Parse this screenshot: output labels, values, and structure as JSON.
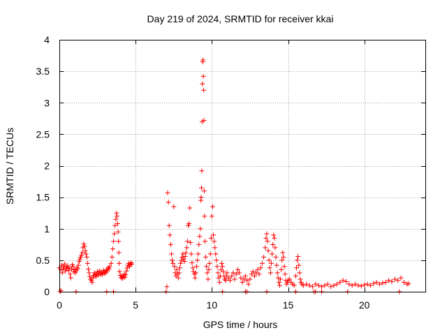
{
  "chart_data": {
    "type": "scatter",
    "title": "Day 219 of 2024, SRMTID for receiver kkai",
    "xlabel": "GPS time / hours",
    "ylabel": "SRMTID / TECUs",
    "xlim": [
      0,
      24
    ],
    "ylim": [
      0,
      4
    ],
    "xticks": [
      0,
      5,
      10,
      15,
      20
    ],
    "yticks": [
      0,
      0.5,
      1,
      1.5,
      2,
      2.5,
      3,
      3.5,
      4
    ],
    "xtick_labels": [
      "0",
      "5",
      "10",
      "15",
      "20"
    ],
    "ytick_labels": [
      "0",
      "0.5",
      "1",
      "1.5",
      "2",
      "2.5",
      "3",
      "3.5",
      "4"
    ],
    "grid": true,
    "marker": "+",
    "color": "#ff0000",
    "series": [
      {
        "name": "kkai",
        "points": [
          [
            0.0,
            0.38
          ],
          [
            0.1,
            0.35
          ],
          [
            0.15,
            0.42
          ],
          [
            0.2,
            0.3
          ],
          [
            0.25,
            0.4
          ],
          [
            0.3,
            0.36
          ],
          [
            0.35,
            0.44
          ],
          [
            0.4,
            0.33
          ],
          [
            0.45,
            0.39
          ],
          [
            0.5,
            0.37
          ],
          [
            0.55,
            0.41
          ],
          [
            0.6,
            0.34
          ],
          [
            0.65,
            0.38
          ],
          [
            0.7,
            0.28
          ],
          [
            0.75,
            0.22
          ],
          [
            0.8,
            0.36
          ],
          [
            0.85,
            0.43
          ],
          [
            0.9,
            0.4
          ],
          [
            0.95,
            0.32
          ],
          [
            1.0,
            0.35
          ],
          [
            1.05,
            0.3
          ],
          [
            1.1,
            0.33
          ],
          [
            1.15,
            0.38
          ],
          [
            1.2,
            0.36
          ],
          [
            1.25,
            0.42
          ],
          [
            1.3,
            0.48
          ],
          [
            1.35,
            0.52
          ],
          [
            1.4,
            0.55
          ],
          [
            1.45,
            0.58
          ],
          [
            1.5,
            0.62
          ],
          [
            1.55,
            0.7
          ],
          [
            1.6,
            0.76
          ],
          [
            1.65,
            0.72
          ],
          [
            1.7,
            0.65
          ],
          [
            1.75,
            0.6
          ],
          [
            1.8,
            0.55
          ],
          [
            1.85,
            0.45
          ],
          [
            1.9,
            0.36
          ],
          [
            1.95,
            0.3
          ],
          [
            2.0,
            0.24
          ],
          [
            2.05,
            0.2
          ],
          [
            2.1,
            0.18
          ],
          [
            2.15,
            0.15
          ],
          [
            2.2,
            0.22
          ],
          [
            2.25,
            0.26
          ],
          [
            2.3,
            0.3
          ],
          [
            2.35,
            0.27
          ],
          [
            2.4,
            0.24
          ],
          [
            2.45,
            0.28
          ],
          [
            2.5,
            0.32
          ],
          [
            2.55,
            0.26
          ],
          [
            2.6,
            0.3
          ],
          [
            2.65,
            0.33
          ],
          [
            2.7,
            0.28
          ],
          [
            2.75,
            0.31
          ],
          [
            2.8,
            0.27
          ],
          [
            2.85,
            0.3
          ],
          [
            2.9,
            0.34
          ],
          [
            2.95,
            0.29
          ],
          [
            3.0,
            0.32
          ],
          [
            3.05,
            0.3
          ],
          [
            3.1,
            0.35
          ],
          [
            3.15,
            0.33
          ],
          [
            3.2,
            0.38
          ],
          [
            3.25,
            0.36
          ],
          [
            3.3,
            0.4
          ],
          [
            3.4,
            0.45
          ],
          [
            3.45,
            0.55
          ],
          [
            3.5,
            0.68
          ],
          [
            3.55,
            0.8
          ],
          [
            3.6,
            0.92
          ],
          [
            3.65,
            1.05
          ],
          [
            3.7,
            1.15
          ],
          [
            3.75,
            1.25
          ],
          [
            3.78,
            1.2
          ],
          [
            3.82,
            1.08
          ],
          [
            3.85,
            0.95
          ],
          [
            3.88,
            0.8
          ],
          [
            3.9,
            0.62
          ],
          [
            3.92,
            0.45
          ],
          [
            3.95,
            0.32
          ],
          [
            4.0,
            0.26
          ],
          [
            4.05,
            0.22
          ],
          [
            4.1,
            0.25
          ],
          [
            4.15,
            0.21
          ],
          [
            4.2,
            0.24
          ],
          [
            4.25,
            0.28
          ],
          [
            4.3,
            0.23
          ],
          [
            4.35,
            0.27
          ],
          [
            4.4,
            0.33
          ],
          [
            4.45,
            0.38
          ],
          [
            4.5,
            0.42
          ],
          [
            4.55,
            0.45
          ],
          [
            4.6,
            0.4
          ],
          [
            4.65,
            0.43
          ],
          [
            4.7,
            0.46
          ],
          [
            4.75,
            0.44
          ],
          [
            0.05,
            0.0
          ],
          [
            0.1,
            0.02
          ],
          [
            1.1,
            0.0
          ],
          [
            3.1,
            0.0
          ],
          [
            3.55,
            0.0
          ],
          [
            7.0,
            0.0
          ],
          [
            7.05,
            0.08
          ],
          [
            7.1,
            1.57
          ],
          [
            7.15,
            1.42
          ],
          [
            7.2,
            1.05
          ],
          [
            7.25,
            0.9
          ],
          [
            7.3,
            0.75
          ],
          [
            7.35,
            0.6
          ],
          [
            7.4,
            0.5
          ],
          [
            7.45,
            0.45
          ],
          [
            7.5,
            1.35
          ],
          [
            7.55,
            0.4
          ],
          [
            7.6,
            0.3
          ],
          [
            7.65,
            0.25
          ],
          [
            7.7,
            0.35
          ],
          [
            7.75,
            0.28
          ],
          [
            7.8,
            0.22
          ],
          [
            7.85,
            0.3
          ],
          [
            7.9,
            0.38
          ],
          [
            7.95,
            0.45
          ],
          [
            8.0,
            0.5
          ],
          [
            8.05,
            0.55
          ],
          [
            8.1,
            0.6
          ],
          [
            8.15,
            0.52
          ],
          [
            8.2,
            0.48
          ],
          [
            8.25,
            0.56
          ],
          [
            8.3,
            0.62
          ],
          [
            8.35,
            0.7
          ],
          [
            8.4,
            0.8
          ],
          [
            8.45,
            1.05
          ],
          [
            8.5,
            1.08
          ],
          [
            8.55,
            1.33
          ],
          [
            8.6,
            0.78
          ],
          [
            8.65,
            0.6
          ],
          [
            8.7,
            0.46
          ],
          [
            8.75,
            0.38
          ],
          [
            8.8,
            0.32
          ],
          [
            8.85,
            0.28
          ],
          [
            8.9,
            0.22
          ],
          [
            8.95,
            0.3
          ],
          [
            9.0,
            0.4
          ],
          [
            9.05,
            0.5
          ],
          [
            9.1,
            0.6
          ],
          [
            9.15,
            0.75
          ],
          [
            9.2,
            0.88
          ],
          [
            9.25,
            1.0
          ],
          [
            9.28,
            1.45
          ],
          [
            9.3,
            1.5
          ],
          [
            9.32,
            1.65
          ],
          [
            9.34,
            1.92
          ],
          [
            9.36,
            2.7
          ],
          [
            9.38,
            3.3
          ],
          [
            9.4,
            3.65
          ],
          [
            9.42,
            3.68
          ],
          [
            9.44,
            3.42
          ],
          [
            9.46,
            3.2
          ],
          [
            9.48,
            2.72
          ],
          [
            9.5,
            1.6
          ],
          [
            9.52,
            1.2
          ],
          [
            9.55,
            0.8
          ],
          [
            9.6,
            0.55
          ],
          [
            9.65,
            0.4
          ],
          [
            9.7,
            0.3
          ],
          [
            9.75,
            0.2
          ],
          [
            9.8,
            0.35
          ],
          [
            9.85,
            0.45
          ],
          [
            9.9,
            0.6
          ],
          [
            9.95,
            0.85
          ],
          [
            10.0,
            1.2
          ],
          [
            10.05,
            1.35
          ],
          [
            10.1,
            0.9
          ],
          [
            10.15,
            0.8
          ],
          [
            10.2,
            0.7
          ],
          [
            10.25,
            0.6
          ],
          [
            10.3,
            0.5
          ],
          [
            10.35,
            0.4
          ],
          [
            10.4,
            0.3
          ],
          [
            10.45,
            0.22
          ],
          [
            10.5,
            0.15
          ],
          [
            10.55,
            0.25
          ],
          [
            10.6,
            0.35
          ],
          [
            10.65,
            0.45
          ],
          [
            10.7,
            0.4
          ],
          [
            10.75,
            0.32
          ],
          [
            10.8,
            0.25
          ],
          [
            10.85,
            0.2
          ],
          [
            10.9,
            0.18
          ],
          [
            10.95,
            0.25
          ],
          [
            11.0,
            0.3
          ],
          [
            11.1,
            0.22
          ],
          [
            11.2,
            0.18
          ],
          [
            11.3,
            0.25
          ],
          [
            11.4,
            0.3
          ],
          [
            11.5,
            0.2
          ],
          [
            11.6,
            0.28
          ],
          [
            11.7,
            0.35
          ],
          [
            11.8,
            0.3
          ],
          [
            11.9,
            0.22
          ],
          [
            12.0,
            0.15
          ],
          [
            12.1,
            0.2
          ],
          [
            12.2,
            0.25
          ],
          [
            12.3,
            0.18
          ],
          [
            12.4,
            0.12
          ],
          [
            12.5,
            0.2
          ],
          [
            12.6,
            0.28
          ],
          [
            12.7,
            0.32
          ],
          [
            12.8,
            0.25
          ],
          [
            12.9,
            0.3
          ],
          [
            13.0,
            0.35
          ],
          [
            13.1,
            0.28
          ],
          [
            13.2,
            0.38
          ],
          [
            13.3,
            0.45
          ],
          [
            13.4,
            0.55
          ],
          [
            13.5,
            0.7
          ],
          [
            13.55,
            0.85
          ],
          [
            13.6,
            0.92
          ],
          [
            13.65,
            0.8
          ],
          [
            13.7,
            0.65
          ],
          [
            13.75,
            0.5
          ],
          [
            13.8,
            0.38
          ],
          [
            13.85,
            0.3
          ],
          [
            13.9,
            0.45
          ],
          [
            13.95,
            0.6
          ],
          [
            14.0,
            0.75
          ],
          [
            14.05,
            0.9
          ],
          [
            14.1,
            0.85
          ],
          [
            14.15,
            0.7
          ],
          [
            14.2,
            0.55
          ],
          [
            14.25,
            0.42
          ],
          [
            14.3,
            0.3
          ],
          [
            14.35,
            0.22
          ],
          [
            14.4,
            0.15
          ],
          [
            14.45,
            0.1
          ],
          [
            14.5,
            0.2
          ],
          [
            14.55,
            0.35
          ],
          [
            14.6,
            0.5
          ],
          [
            14.65,
            0.62
          ],
          [
            14.7,
            0.55
          ],
          [
            14.75,
            0.4
          ],
          [
            14.8,
            0.28
          ],
          [
            14.85,
            0.18
          ],
          [
            14.9,
            0.12
          ],
          [
            14.95,
            0.15
          ],
          [
            15.0,
            0.18
          ],
          [
            15.1,
            0.2
          ],
          [
            15.2,
            0.15
          ],
          [
            15.3,
            0.12
          ],
          [
            15.4,
            0.1
          ],
          [
            15.5,
            0.25
          ],
          [
            15.55,
            0.38
          ],
          [
            15.6,
            0.5
          ],
          [
            15.65,
            0.56
          ],
          [
            15.7,
            0.42
          ],
          [
            15.75,
            0.3
          ],
          [
            15.8,
            0.2
          ],
          [
            15.85,
            0.15
          ],
          [
            15.9,
            0.12
          ],
          [
            16.0,
            0.1
          ],
          [
            16.2,
            0.12
          ],
          [
            16.4,
            0.1
          ],
          [
            16.6,
            0.08
          ],
          [
            16.8,
            0.12
          ],
          [
            17.0,
            0.1
          ],
          [
            17.2,
            0.08
          ],
          [
            17.4,
            0.1
          ],
          [
            17.6,
            0.12
          ],
          [
            17.8,
            0.08
          ],
          [
            18.0,
            0.1
          ],
          [
            18.2,
            0.12
          ],
          [
            18.4,
            0.15
          ],
          [
            18.6,
            0.18
          ],
          [
            18.8,
            0.16
          ],
          [
            19.0,
            0.12
          ],
          [
            19.2,
            0.1
          ],
          [
            19.4,
            0.12
          ],
          [
            19.6,
            0.1
          ],
          [
            19.8,
            0.09
          ],
          [
            20.0,
            0.11
          ],
          [
            20.2,
            0.12
          ],
          [
            20.4,
            0.1
          ],
          [
            20.6,
            0.13
          ],
          [
            20.8,
            0.15
          ],
          [
            21.0,
            0.12
          ],
          [
            21.2,
            0.14
          ],
          [
            21.4,
            0.15
          ],
          [
            21.6,
            0.18
          ],
          [
            21.8,
            0.16
          ],
          [
            22.0,
            0.2
          ],
          [
            22.2,
            0.18
          ],
          [
            22.4,
            0.22
          ],
          [
            22.6,
            0.15
          ],
          [
            22.8,
            0.12
          ],
          [
            22.9,
            0.13
          ],
          [
            15.5,
            0.0
          ],
          [
            16.7,
            0.0
          ],
          [
            10.7,
            0.0
          ],
          [
            12.2,
            0.0
          ],
          [
            12.3,
            0.0
          ],
          [
            13.6,
            0.0
          ],
          [
            16.8,
            0.0
          ],
          [
            17.2,
            0.0
          ],
          [
            18.9,
            0.0
          ],
          [
            22.3,
            0.0
          ]
        ]
      }
    ]
  }
}
